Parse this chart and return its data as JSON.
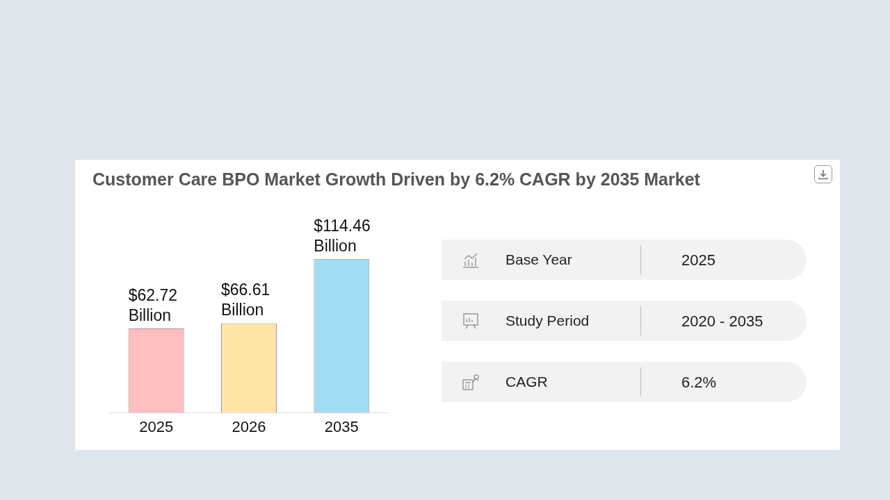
{
  "chart_data": [
    {
      "type": "bar",
      "title": "Customer Care BPO Market Growth Driven by 6.2% CAGR by 2035 Market",
      "categories": [
        "2025",
        "2026",
        "2035"
      ],
      "values": [
        62.72,
        66.61,
        114.46
      ],
      "colors": [
        "#ffbfc0",
        "#ffe6a8",
        "#a0dcf4"
      ],
      "value_labels": [
        "$62.72 Billion",
        "$66.61 Billion",
        "$114.46 Billion"
      ]
    },
    {
      "type": "other",
      "annotations": [
        "Base Year",
        "2025",
        "Study Period",
        "2020 - 2035",
        "CAGR",
        "6.2%"
      ]
    }
  ]
}
